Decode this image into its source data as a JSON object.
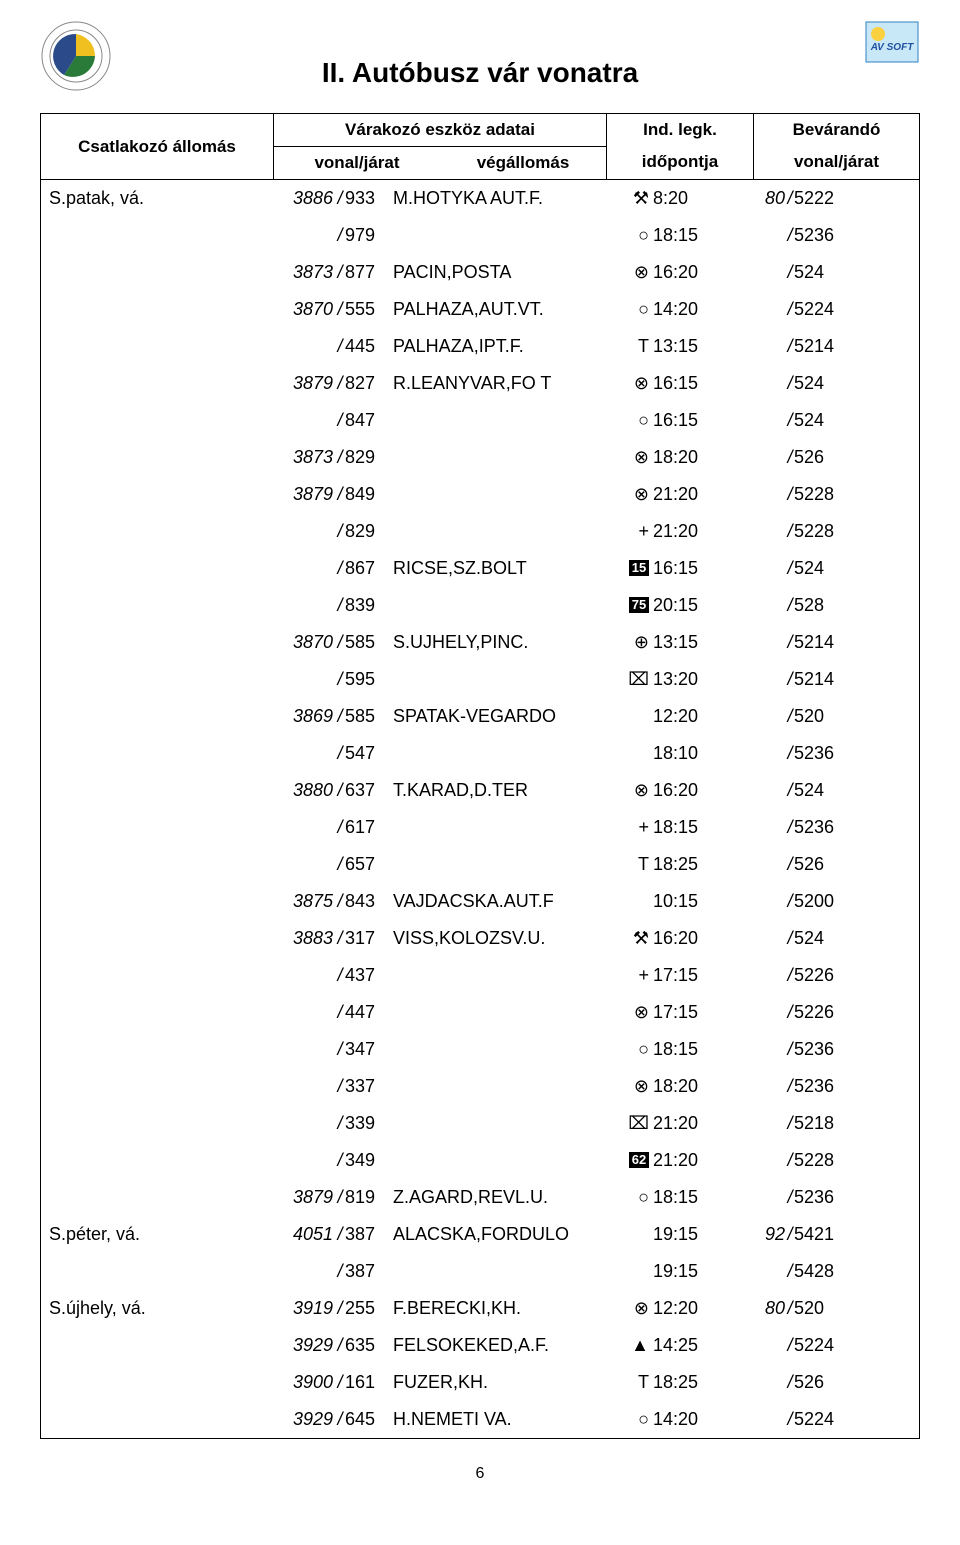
{
  "title": "II. Autóbusz vár vonatra",
  "pagenum": "6",
  "headers": {
    "station": "Csatlakozó állomás",
    "vehicle": "Várakozó eszköz adatai",
    "vonal_jarat": "vonal/járat",
    "vegallomas": "végállomás",
    "ind_legk": "Ind. legk.",
    "idopontja": "időpontja",
    "bevarando": "Bevárandó",
    "bevarando_vj": "vonal/járat"
  },
  "rows": [
    {
      "station": "S.patak, vá.",
      "line": "3886",
      "jarat": "933",
      "terminus": "M.HOTYKA AUT.F.",
      "symGlyph": "⚒",
      "time": "8:20",
      "wline": "80",
      "wjarat": "5222"
    },
    {
      "station": "",
      "line": "",
      "jarat": "979",
      "terminus": "",
      "symGlyph": "○",
      "time": "18:15",
      "wline": "",
      "wjarat": "5236"
    },
    {
      "station": "",
      "line": "3873",
      "jarat": "877",
      "terminus": "PACIN,POSTA",
      "symGlyph": "⊗",
      "time": "16:20",
      "wline": "",
      "wjarat": "524"
    },
    {
      "station": "",
      "line": "3870",
      "jarat": "555",
      "terminus": "PALHAZA,AUT.VT.",
      "symGlyph": "○",
      "time": "14:20",
      "wline": "",
      "wjarat": "5224"
    },
    {
      "station": "",
      "line": "",
      "jarat": "445",
      "terminus": "PALHAZA,IPT.F.",
      "symGlyph": "T",
      "time": "13:15",
      "wline": "",
      "wjarat": "5214"
    },
    {
      "station": "",
      "line": "3879",
      "jarat": "827",
      "terminus": "R.LEANYVAR,FO T",
      "symGlyph": "⊗",
      "time": "16:15",
      "wline": "",
      "wjarat": "524"
    },
    {
      "station": "",
      "line": "",
      "jarat": "847",
      "terminus": "",
      "symGlyph": "○",
      "time": "16:15",
      "wline": "",
      "wjarat": "524"
    },
    {
      "station": "",
      "line": "3873",
      "jarat": "829",
      "terminus": "",
      "symGlyph": "⊗",
      "time": "18:20",
      "wline": "",
      "wjarat": "526"
    },
    {
      "station": "",
      "line": "3879",
      "jarat": "849",
      "terminus": "",
      "symGlyph": "⊗",
      "time": "21:20",
      "wline": "",
      "wjarat": "5228"
    },
    {
      "station": "",
      "line": "",
      "jarat": "829",
      "terminus": "",
      "symGlyph": "+",
      "time": "21:20",
      "wline": "",
      "wjarat": "5228"
    },
    {
      "station": "",
      "line": "",
      "jarat": "867",
      "terminus": "RICSE,SZ.BOLT",
      "symBox": "15",
      "time": "16:15",
      "wline": "",
      "wjarat": "524"
    },
    {
      "station": "",
      "line": "",
      "jarat": "839",
      "terminus": "",
      "symBox": "75",
      "time": "20:15",
      "wline": "",
      "wjarat": "528"
    },
    {
      "station": "",
      "line": "3870",
      "jarat": "585",
      "terminus": "S.UJHELY,PINC.",
      "symGlyph": "⊕",
      "time": "13:15",
      "wline": "",
      "wjarat": "5214"
    },
    {
      "station": "",
      "line": "",
      "jarat": "595",
      "terminus": "",
      "symGlyph": "⌧",
      "time": "13:20",
      "wline": "",
      "wjarat": "5214"
    },
    {
      "station": "",
      "line": "3869",
      "jarat": "585",
      "terminus": "SPATAK-VEGARDO",
      "symGlyph": "",
      "time": "12:20",
      "wline": "",
      "wjarat": "520"
    },
    {
      "station": "",
      "line": "",
      "jarat": "547",
      "terminus": "",
      "symGlyph": "",
      "time": "18:10",
      "wline": "",
      "wjarat": "5236"
    },
    {
      "station": "",
      "line": "3880",
      "jarat": "637",
      "terminus": "T.KARAD,D.TER",
      "symGlyph": "⊗",
      "time": "16:20",
      "wline": "",
      "wjarat": "524"
    },
    {
      "station": "",
      "line": "",
      "jarat": "617",
      "terminus": "",
      "symGlyph": "+",
      "time": "18:15",
      "wline": "",
      "wjarat": "5236"
    },
    {
      "station": "",
      "line": "",
      "jarat": "657",
      "terminus": "",
      "symGlyph": "T",
      "time": "18:25",
      "wline": "",
      "wjarat": "526"
    },
    {
      "station": "",
      "line": "3875",
      "jarat": "843",
      "terminus": "VAJDACSKA.AUT.F",
      "symGlyph": "",
      "time": "10:15",
      "wline": "",
      "wjarat": "5200"
    },
    {
      "station": "",
      "line": "3883",
      "jarat": "317",
      "terminus": "VISS,KOLOZSV.U.",
      "symGlyph": "⚒",
      "time": "16:20",
      "wline": "",
      "wjarat": "524"
    },
    {
      "station": "",
      "line": "",
      "jarat": "437",
      "terminus": "",
      "symGlyph": "+",
      "time": "17:15",
      "wline": "",
      "wjarat": "5226"
    },
    {
      "station": "",
      "line": "",
      "jarat": "447",
      "terminus": "",
      "symGlyph": "⊗",
      "time": "17:15",
      "wline": "",
      "wjarat": "5226"
    },
    {
      "station": "",
      "line": "",
      "jarat": "347",
      "terminus": "",
      "symGlyph": "○",
      "time": "18:15",
      "wline": "",
      "wjarat": "5236"
    },
    {
      "station": "",
      "line": "",
      "jarat": "337",
      "terminus": "",
      "symGlyph": "⊗",
      "time": "18:20",
      "wline": "",
      "wjarat": "5236"
    },
    {
      "station": "",
      "line": "",
      "jarat": "339",
      "terminus": "",
      "symGlyph": "⌧",
      "time": "21:20",
      "wline": "",
      "wjarat": "5218"
    },
    {
      "station": "",
      "line": "",
      "jarat": "349",
      "terminus": "",
      "symBox": "62",
      "time": "21:20",
      "wline": "",
      "wjarat": "5228"
    },
    {
      "station": "",
      "line": "3879",
      "jarat": "819",
      "terminus": "Z.AGARD,REVL.U.",
      "symGlyph": "○",
      "time": "18:15",
      "wline": "",
      "wjarat": "5236"
    },
    {
      "station": "S.péter, vá.",
      "line": "4051",
      "jarat": "387",
      "terminus": "ALACSKA,FORDULO",
      "symGlyph": "",
      "time": "19:15",
      "wline": "92",
      "wjarat": "5421"
    },
    {
      "station": "",
      "line": "",
      "jarat": "387",
      "terminus": "",
      "symGlyph": "",
      "time": "19:15",
      "wline": "",
      "wjarat": "5428"
    },
    {
      "station": "S.újhely, vá.",
      "line": "3919",
      "jarat": "255",
      "terminus": "F.BERECKI,KH.",
      "symGlyph": "⊗",
      "time": "12:20",
      "wline": "80",
      "wjarat": "520"
    },
    {
      "station": "",
      "line": "3929",
      "jarat": "635",
      "terminus": "FELSOKEKED,A.F.",
      "symGlyph": "▲",
      "time": "14:25",
      "wline": "",
      "wjarat": "5224"
    },
    {
      "station": "",
      "line": "3900",
      "jarat": "161",
      "terminus": "FUZER,KH.",
      "symGlyph": "T",
      "time": "18:25",
      "wline": "",
      "wjarat": "526"
    },
    {
      "station": "",
      "line": "3929",
      "jarat": "645",
      "terminus": "H.NEMETI VA.",
      "symGlyph": "○",
      "time": "14:20",
      "wline": "",
      "wjarat": "5224"
    }
  ]
}
